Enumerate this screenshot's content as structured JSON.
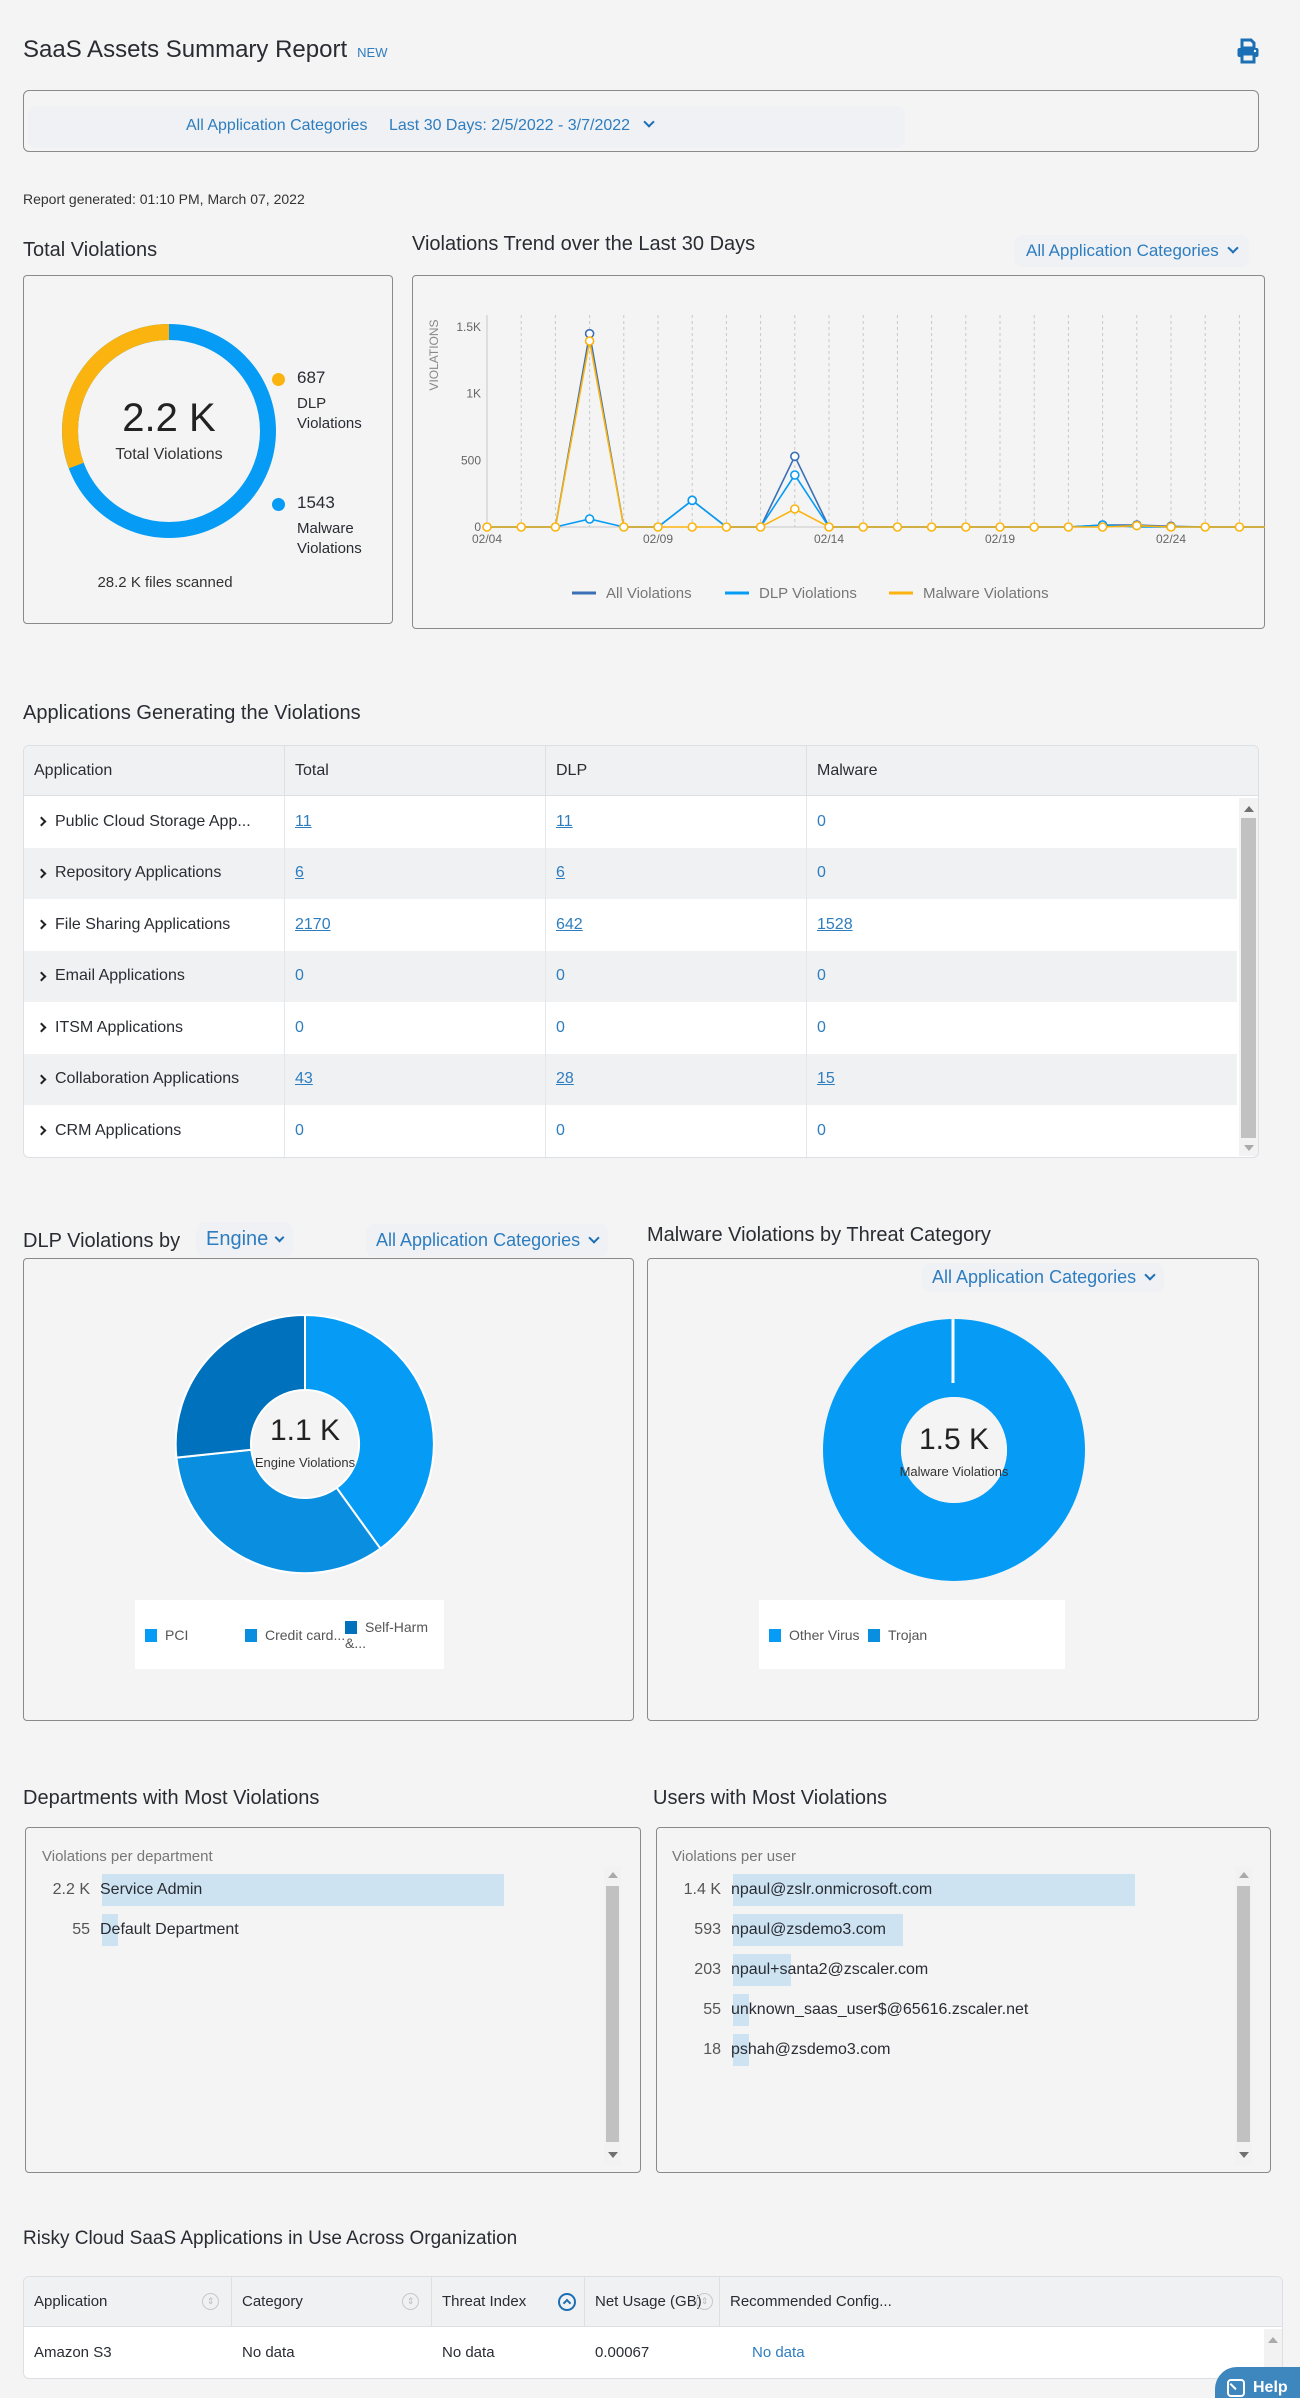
{
  "header": {
    "title": "SaaS Assets Summary Report",
    "badge": "NEW",
    "print_icon": "printer-icon"
  },
  "filters": {
    "category": "All Application Categories",
    "date_range": "Last 30 Days: 2/5/2022 - 3/7/2022"
  },
  "report_generated": "Report generated: 01:10 PM, March 07, 2022",
  "total_violations": {
    "title": "Total Violations",
    "center_value": "2.2 K",
    "center_label": "Total Violations",
    "dlp_value": "687",
    "dlp_label_1": "DLP",
    "dlp_label_2": "Violations",
    "malware_value": "1543",
    "malware_label_1": "Malware",
    "malware_label_2": "Violations",
    "files_scanned": "28.2 K files scanned",
    "colors": {
      "dlp": "#fbb40f",
      "malware": "#069cf6"
    }
  },
  "trend": {
    "title": "Violations Trend over the Last 30 Days",
    "filter": "All Application Categories",
    "ylabel": "VIOLATIONS",
    "yticks": [
      "1.5K",
      "1K",
      "500",
      "0"
    ],
    "xticks": [
      "02/04",
      "02/09",
      "02/14",
      "02/19",
      "02/24"
    ],
    "legend": [
      "All Violations",
      "DLP Violations",
      "Malware Violations"
    ]
  },
  "chart_data": [
    {
      "type": "line",
      "title": "Violations Trend over the Last 30 Days",
      "xlabel": "",
      "ylabel": "VIOLATIONS",
      "ylim": [
        0,
        1600
      ],
      "grid": "vertical dashed",
      "legend_position": "bottom",
      "x": [
        "02/04",
        "02/05",
        "02/06",
        "02/07",
        "02/08",
        "02/09",
        "02/10",
        "02/11",
        "02/12",
        "02/13",
        "02/14",
        "02/15",
        "02/16",
        "02/17",
        "02/18",
        "02/19",
        "02/20",
        "02/21",
        "02/22",
        "02/23",
        "02/24",
        "02/25",
        "02/26",
        "02/27"
      ],
      "series": [
        {
          "name": "All Violations",
          "color": "#3b6fb6",
          "values": [
            0,
            0,
            0,
            1450,
            0,
            0,
            200,
            0,
            0,
            530,
            0,
            0,
            0,
            0,
            0,
            0,
            0,
            0,
            15,
            15,
            5,
            0,
            0,
            0
          ]
        },
        {
          "name": "DLP Violations",
          "color": "#069cf6",
          "values": [
            0,
            0,
            0,
            60,
            0,
            0,
            200,
            0,
            0,
            390,
            0,
            0,
            0,
            0,
            0,
            0,
            0,
            0,
            15,
            0,
            0,
            0,
            0,
            0
          ]
        },
        {
          "name": "Malware Violations",
          "color": "#fbb40f",
          "values": [
            0,
            0,
            0,
            1395,
            0,
            0,
            0,
            0,
            0,
            135,
            0,
            0,
            0,
            0,
            0,
            0,
            0,
            0,
            0,
            10,
            0,
            0,
            0,
            0
          ]
        }
      ]
    },
    {
      "type": "pie",
      "title": "Total Violations",
      "categories": [
        "DLP Violations",
        "Malware Violations"
      ],
      "values": [
        687,
        1543
      ],
      "colors": [
        "#fbb40f",
        "#069cf6"
      ]
    },
    {
      "type": "pie",
      "title": "DLP Violations by Engine",
      "center": "1.1 K Engine Violations",
      "categories": [
        "PCI",
        "Credit card...",
        "Self-Harm &..."
      ],
      "values": [
        37,
        37,
        26
      ],
      "unit": "percent (estimated)",
      "colors": [
        "#069cf6",
        "#0a8ee0",
        "#0071bc"
      ]
    },
    {
      "type": "pie",
      "title": "Malware Violations by Threat Category",
      "center": "1.5 K Malware Violations",
      "categories": [
        "Other Virus",
        "Trojan"
      ],
      "values": [
        99.7,
        0.3
      ],
      "unit": "percent (estimated)",
      "colors": [
        "#069cf6",
        "#0a8ee0"
      ]
    },
    {
      "type": "bar",
      "title": "Departments with Most Violations",
      "categories": [
        "Service Admin",
        "Default Department"
      ],
      "values": [
        2200,
        55
      ]
    },
    {
      "type": "bar",
      "title": "Users with Most Violations",
      "categories": [
        "npaul@zslr.onmicrosoft.com",
        "npaul@zsdemo3.com",
        "npaul+santa2@zscaler.com",
        "unknown_saas_user$@65616.zscaler.net",
        "pshah@zsdemo3.com"
      ],
      "values": [
        1400,
        593,
        203,
        55,
        18
      ]
    }
  ],
  "apps": {
    "title": "Applications Generating the Violations",
    "columns": [
      "Application",
      "Total",
      "DLP",
      "Malware"
    ],
    "rows": [
      {
        "name": "Public Cloud Storage App...",
        "total": "11",
        "dlp": "11",
        "malware": "0"
      },
      {
        "name": "Repository Applications",
        "total": "6",
        "dlp": "6",
        "malware": "0"
      },
      {
        "name": "File Sharing Applications",
        "total": "2170",
        "dlp": "642",
        "malware": "1528"
      },
      {
        "name": "Email Applications",
        "total": "0",
        "dlp": "0",
        "malware": "0"
      },
      {
        "name": "ITSM Applications",
        "total": "0",
        "dlp": "0",
        "malware": "0"
      },
      {
        "name": "Collaboration Applications",
        "total": "43",
        "dlp": "28",
        "malware": "15"
      },
      {
        "name": "CRM Applications",
        "total": "0",
        "dlp": "0",
        "malware": "0"
      }
    ]
  },
  "dlp_engine": {
    "title": "DLP Violations by",
    "group_by": "Engine",
    "filter": "All Application Categories",
    "center_value": "1.1 K",
    "center_label": "Engine Violations",
    "legend": [
      "PCI",
      "Credit card...",
      "Self-Harm &..."
    ]
  },
  "malware_threat": {
    "title": "Malware Violations by Threat Category",
    "filter": "All Application Categories",
    "center_value": "1.5 K",
    "center_label": "Malware Violations",
    "legend": [
      "Other Virus",
      "Trojan"
    ]
  },
  "departments": {
    "title": "Departments with Most Violations",
    "subtitle": "Violations per department",
    "rows": [
      {
        "value": "2.2 K",
        "label": "Service Admin"
      },
      {
        "value": "55",
        "label": "Default Department"
      }
    ]
  },
  "users": {
    "title": "Users with Most Violations",
    "subtitle": "Violations per user",
    "rows": [
      {
        "value": "1.4 K",
        "label": "npaul@zslr.onmicrosoft.com"
      },
      {
        "value": "593",
        "label": "npaul@zsdemo3.com"
      },
      {
        "value": "203",
        "label": "npaul+santa2@zscaler.com"
      },
      {
        "value": "55",
        "label": "unknown_saas_user$@65616.zscaler.net"
      },
      {
        "value": "18",
        "label": "pshah@zsdemo3.com"
      }
    ]
  },
  "risky": {
    "title": "Risky Cloud SaaS Applications in Use Across Organization",
    "columns": [
      "Application",
      "Category",
      "Threat Index",
      "Net Usage (GB)",
      "Recommended Config..."
    ],
    "rows": [
      {
        "application": "Amazon S3",
        "category": "No data",
        "threat_index": "No data",
        "net_usage": "0.00067",
        "recommended": "No data"
      }
    ]
  },
  "help": {
    "label": "Help"
  }
}
